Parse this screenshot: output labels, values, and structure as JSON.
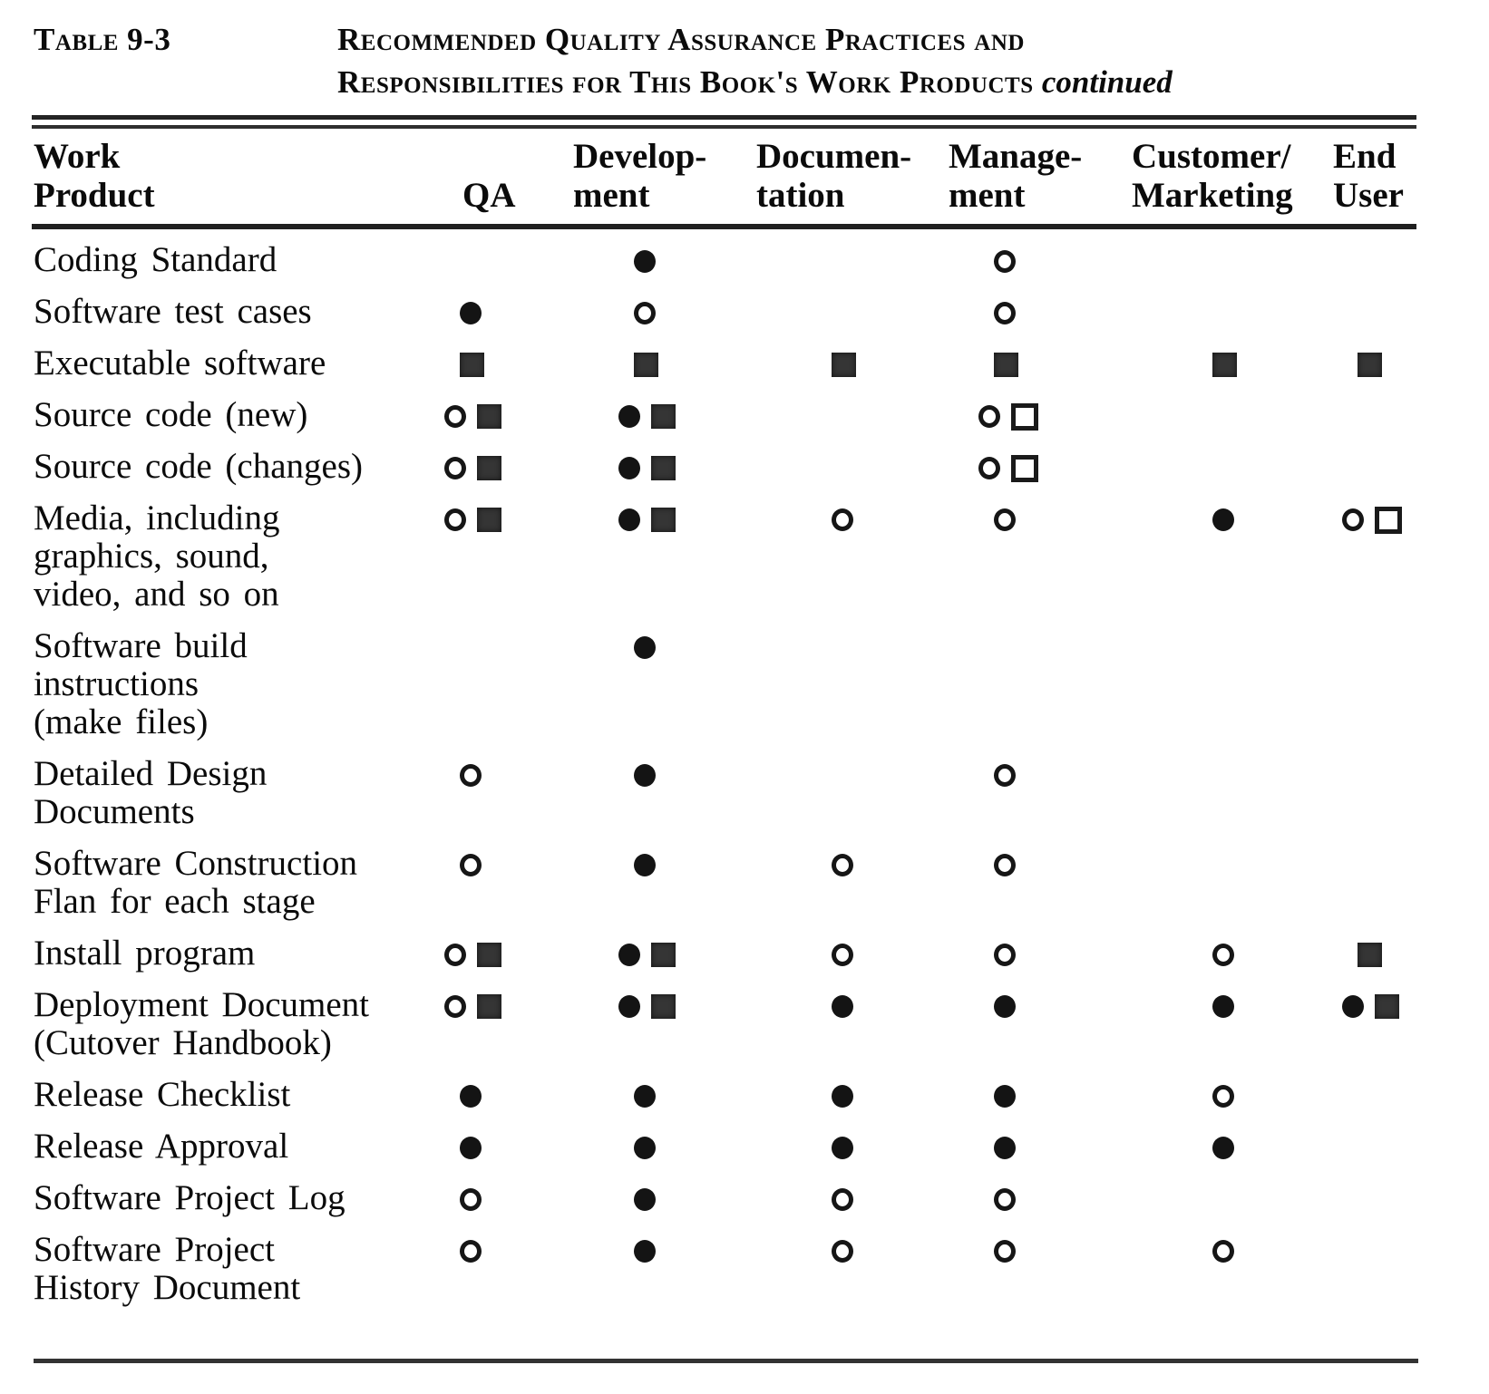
{
  "header": {
    "table_label": "Table 9-3",
    "title_line1": "Recommended Quality Assurance Practices and",
    "title_line2": "Responsibilities for This Book's Work Products",
    "title_continued": "continued"
  },
  "symbols": {
    "filled-circle": "●",
    "open-circle": "○",
    "filled-square": "■",
    "open-square": "□"
  },
  "columns": [
    {
      "id": "work-product",
      "lines": [
        "Work",
        "Product"
      ]
    },
    {
      "id": "qa",
      "lines": [
        "",
        "QA"
      ]
    },
    {
      "id": "development",
      "lines": [
        "Develop-",
        "ment"
      ]
    },
    {
      "id": "documentation",
      "lines": [
        "Documen-",
        "tation"
      ]
    },
    {
      "id": "management",
      "lines": [
        "Manage-",
        "ment"
      ]
    },
    {
      "id": "customer-marketing",
      "lines": [
        "Customer/",
        "Marketing"
      ]
    },
    {
      "id": "end-user",
      "lines": [
        "End",
        "User"
      ]
    }
  ],
  "rows": [
    {
      "product_lines": [
        "Coding Standard"
      ],
      "qa": [],
      "development": [
        "filled-circle"
      ],
      "documentation": [],
      "management": [
        "open-circle"
      ],
      "customer_marketing": [],
      "end_user": []
    },
    {
      "product_lines": [
        "Software test cases"
      ],
      "qa": [
        "filled-circle"
      ],
      "development": [
        "open-circle"
      ],
      "documentation": [],
      "management": [
        "open-circle"
      ],
      "customer_marketing": [],
      "end_user": []
    },
    {
      "product_lines": [
        "Executable software"
      ],
      "qa": [
        "filled-square"
      ],
      "development": [
        "filled-square"
      ],
      "documentation": [
        "filled-square"
      ],
      "management": [
        "filled-square"
      ],
      "customer_marketing": [
        "filled-square"
      ],
      "end_user": [
        "filled-square"
      ]
    },
    {
      "product_lines": [
        "Source code (new)"
      ],
      "qa": [
        "open-circle",
        "filled-square"
      ],
      "development": [
        "filled-circle",
        "filled-square"
      ],
      "documentation": [],
      "management": [
        "open-circle",
        "open-square"
      ],
      "customer_marketing": [],
      "end_user": []
    },
    {
      "product_lines": [
        "Source code (changes)"
      ],
      "qa": [
        "open-circle",
        "filled-square"
      ],
      "development": [
        "filled-circle",
        "filled-square"
      ],
      "documentation": [],
      "management": [
        "open-circle",
        "open-square"
      ],
      "customer_marketing": [],
      "end_user": []
    },
    {
      "product_lines": [
        "Media, including",
        "graphics, sound,",
        "video, and so on"
      ],
      "qa": [
        "open-circle",
        "filled-square"
      ],
      "development": [
        "filled-circle",
        "filled-square"
      ],
      "documentation": [
        "open-circle"
      ],
      "management": [
        "open-circle"
      ],
      "customer_marketing": [
        "filled-circle"
      ],
      "end_user": [
        "open-circle",
        "open-square"
      ]
    },
    {
      "product_lines": [
        "Software build",
        "instructions",
        "(make files)"
      ],
      "qa": [],
      "development": [
        "filled-circle"
      ],
      "documentation": [],
      "management": [],
      "customer_marketing": [],
      "end_user": []
    },
    {
      "product_lines": [
        "Detailed Design",
        "Documents"
      ],
      "qa": [
        "open-circle"
      ],
      "development": [
        "filled-circle"
      ],
      "documentation": [],
      "management": [
        "open-circle"
      ],
      "customer_marketing": [],
      "end_user": []
    },
    {
      "product_lines": [
        "Software Construction",
        "Flan for each stage"
      ],
      "qa": [
        "open-circle"
      ],
      "development": [
        "filled-circle"
      ],
      "documentation": [
        "open-circle"
      ],
      "management": [
        "open-circle"
      ],
      "customer_marketing": [],
      "end_user": []
    },
    {
      "product_lines": [
        "Install program"
      ],
      "qa": [
        "open-circle",
        "filled-square"
      ],
      "development": [
        "filled-circle",
        "filled-square"
      ],
      "documentation": [
        "open-circle"
      ],
      "management": [
        "open-circle"
      ],
      "customer_marketing": [
        "open-circle"
      ],
      "end_user": [
        "filled-square"
      ]
    },
    {
      "product_lines": [
        "Deployment Document",
        "(Cutover Handbook)"
      ],
      "qa": [
        "open-circle",
        "filled-square"
      ],
      "development": [
        "filled-circle",
        "filled-square"
      ],
      "documentation": [
        "filled-circle"
      ],
      "management": [
        "filled-circle"
      ],
      "customer_marketing": [
        "filled-circle"
      ],
      "end_user": [
        "filled-circle",
        "filled-square"
      ]
    },
    {
      "product_lines": [
        "Release Checklist"
      ],
      "qa": [
        "filled-circle"
      ],
      "development": [
        "filled-circle"
      ],
      "documentation": [
        "filled-circle"
      ],
      "management": [
        "filled-circle"
      ],
      "customer_marketing": [
        "open-circle"
      ],
      "end_user": []
    },
    {
      "product_lines": [
        "Release Approval"
      ],
      "qa": [
        "filled-circle"
      ],
      "development": [
        "filled-circle"
      ],
      "documentation": [
        "filled-circle"
      ],
      "management": [
        "filled-circle"
      ],
      "customer_marketing": [
        "filled-circle"
      ],
      "end_user": []
    },
    {
      "product_lines": [
        "Software Project Log"
      ],
      "qa": [
        "open-circle"
      ],
      "development": [
        "filled-circle"
      ],
      "documentation": [
        "open-circle"
      ],
      "management": [
        "open-circle"
      ],
      "customer_marketing": [],
      "end_user": []
    },
    {
      "product_lines": [
        "Software Project",
        "History Document"
      ],
      "qa": [
        "open-circle"
      ],
      "development": [
        "filled-circle"
      ],
      "documentation": [
        "open-circle"
      ],
      "management": [
        "open-circle"
      ],
      "customer_marketing": [
        "open-circle"
      ],
      "end_user": []
    }
  ]
}
